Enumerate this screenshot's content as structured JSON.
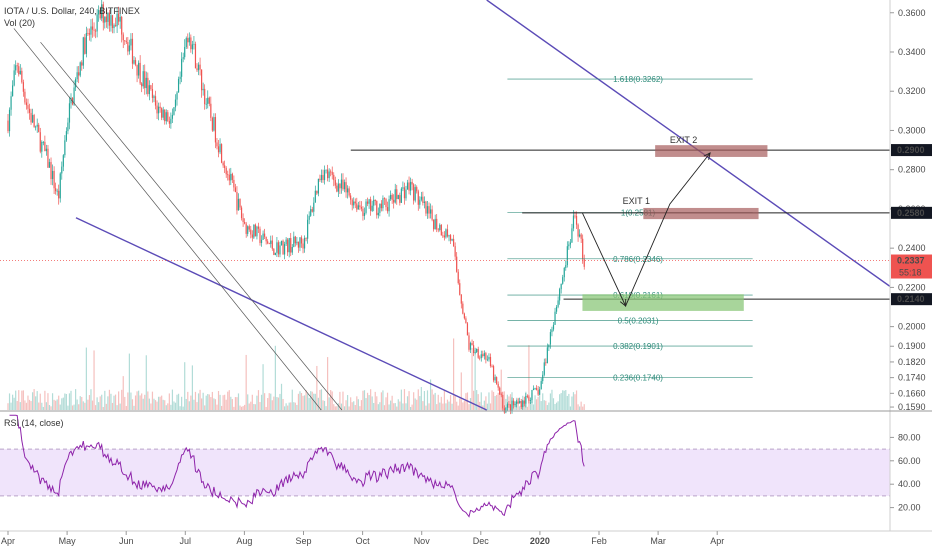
{
  "legend": {
    "symbol": "IOTA / U.S. Dollar, 240, BITFINEX",
    "volume": "Vol (20)",
    "rsi": "RSI (14, close)"
  },
  "colors": {
    "up": "#26a69a",
    "down": "#ef5350",
    "trendline": "#5b4bb7",
    "fib": "#2e8b7a",
    "rsi_line": "#8e24aa",
    "rsi_band": "#f0e4fb",
    "current_price": "#ef5350",
    "exit_box": "#a65d5d",
    "entry_box": "#8bc77a"
  },
  "chart_data": {
    "type": "candlestick",
    "price_axis": {
      "ylim": [
        0.1575,
        0.3665
      ],
      "ticks": [
        "0.3600",
        "0.3400",
        "0.3200",
        "0.3000",
        "0.2800",
        "0.2600",
        "0.2400",
        "0.2200",
        "0.2000",
        "0.1900",
        "0.1820",
        "0.1740",
        "0.1660",
        "0.1590"
      ],
      "tick_values": [
        0.36,
        0.34,
        0.32,
        0.3,
        0.28,
        0.26,
        0.24,
        0.22,
        0.2,
        0.19,
        0.182,
        0.174,
        0.166,
        0.159
      ]
    },
    "time_axis": {
      "labels": [
        "Apr",
        "May",
        "Jun",
        "Jul",
        "Aug",
        "Sep",
        "Oct",
        "Nov",
        "Dec",
        "2020",
        "Feb",
        "Mar",
        "Apr"
      ],
      "positions": [
        0,
        1,
        2,
        3,
        4,
        5,
        6,
        7,
        8,
        9,
        10,
        11,
        12
      ]
    },
    "price_path": [
      [
        0.0,
        0.305
      ],
      [
        0.15,
        0.335
      ],
      [
        0.35,
        0.31
      ],
      [
        0.7,
        0.282
      ],
      [
        0.85,
        0.265
      ],
      [
        1.0,
        0.305
      ],
      [
        1.3,
        0.345
      ],
      [
        1.6,
        0.36
      ],
      [
        1.9,
        0.355
      ],
      [
        2.2,
        0.332
      ],
      [
        2.5,
        0.312
      ],
      [
        2.8,
        0.305
      ],
      [
        3.05,
        0.352
      ],
      [
        3.35,
        0.315
      ],
      [
        3.7,
        0.28
      ],
      [
        4.0,
        0.252
      ],
      [
        4.5,
        0.24
      ],
      [
        5.0,
        0.243
      ],
      [
        5.3,
        0.28
      ],
      [
        5.6,
        0.272
      ],
      [
        6.0,
        0.26
      ],
      [
        6.4,
        0.262
      ],
      [
        6.8,
        0.272
      ],
      [
        7.1,
        0.257
      ],
      [
        7.5,
        0.245
      ],
      [
        7.8,
        0.19
      ],
      [
        8.1,
        0.185
      ],
      [
        8.4,
        0.158
      ],
      [
        8.7,
        0.162
      ],
      [
        9.0,
        0.168
      ],
      [
        9.2,
        0.2
      ],
      [
        9.45,
        0.235
      ],
      [
        9.6,
        0.257
      ],
      [
        9.75,
        0.233
      ]
    ],
    "current_price": {
      "value": 0.2337,
      "label": "0.2337",
      "countdown": "55:18"
    },
    "levels": [
      {
        "value": 0.29,
        "label": "0.2900"
      },
      {
        "value": 0.258,
        "label": "0.2580"
      },
      {
        "value": 0.214,
        "label": "0.2140"
      }
    ],
    "fibonacci": [
      {
        "value": 0.3262,
        "label": "1.618(0.3262)"
      },
      {
        "value": 0.2581,
        "label": "1(0.2581)"
      },
      {
        "value": 0.2346,
        "label": "0.786(0.2346)"
      },
      {
        "value": 0.2161,
        "label": "0.618(0.2161)"
      },
      {
        "value": 0.2031,
        "label": "0.5(0.2031)"
      },
      {
        "value": 0.1901,
        "label": "0.382(0.1901)"
      },
      {
        "value": 0.174,
        "label": "0.236(0.1740)"
      }
    ],
    "annotations": [
      {
        "text": "EXIT 2",
        "value": 0.2935,
        "t": 11.2
      },
      {
        "text": "EXIT 1",
        "value": 0.2625,
        "t": 10.4
      }
    ],
    "rsi": {
      "ylim": [
        0,
        100
      ],
      "ticks": [
        "80.00",
        "60.00",
        "40.00",
        "20.00"
      ],
      "tick_values": [
        80,
        60,
        40,
        20
      ],
      "band": [
        30,
        70
      ]
    }
  }
}
